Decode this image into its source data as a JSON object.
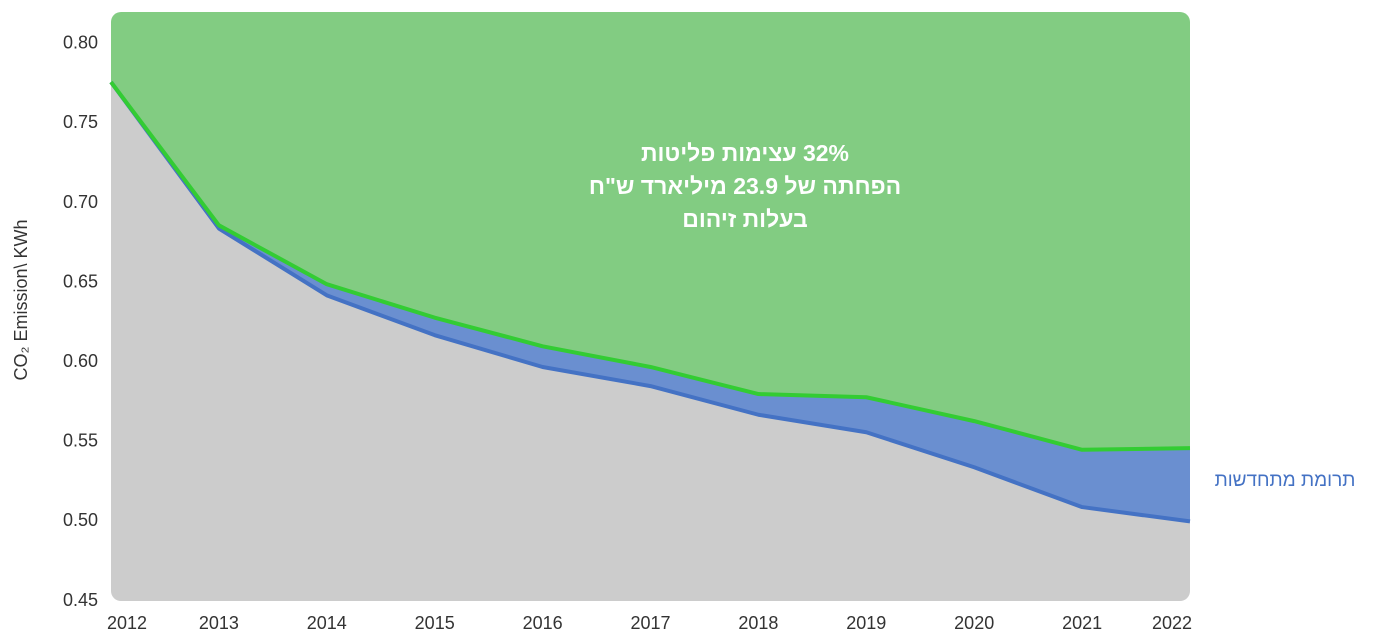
{
  "chart_data": {
    "type": "area",
    "y_label": "CO₂ Emission\\ KWh",
    "annotation": [
      "32% עצימות פליטות",
      "הפחתה של 23.9 מיליארד ש\"ח",
      "בעלות זיהום"
    ],
    "band_label": "תרומת מתחדשות",
    "x": [
      2012,
      2013,
      2014,
      2015,
      2016,
      2017,
      2018,
      2019,
      2020,
      2021,
      2022
    ],
    "xlim": [
      2012,
      2022
    ],
    "xticks": [
      2012,
      2013,
      2014,
      2015,
      2016,
      2017,
      2018,
      2019,
      2020,
      2021,
      2022
    ],
    "ylim": [
      0.45,
      0.82
    ],
    "yticks": [
      0.45,
      {
        "value": 0.5,
        "label": "0.50"
      },
      0.55,
      {
        "value": 0.6,
        "label": "0.60"
      },
      0.65,
      {
        "value": 0.7,
        "label": "0.70"
      },
      0.75,
      {
        "value": 0.8,
        "label": "0.80"
      }
    ],
    "base_fill": "#cccccc",
    "series": [
      {
        "color": "#4472c4",
        "fill": "#6a8fd0",
        "values": [
          0.776,
          0.684,
          0.642,
          0.617,
          0.597,
          0.585,
          0.567,
          0.556,
          0.534,
          0.509,
          0.5
        ]
      },
      {
        "color": "#33cc33",
        "fill": "#82cc82",
        "values": [
          0.776,
          0.686,
          0.649,
          0.628,
          0.61,
          0.597,
          0.58,
          0.578,
          0.563,
          0.545,
          0.546
        ]
      }
    ]
  }
}
